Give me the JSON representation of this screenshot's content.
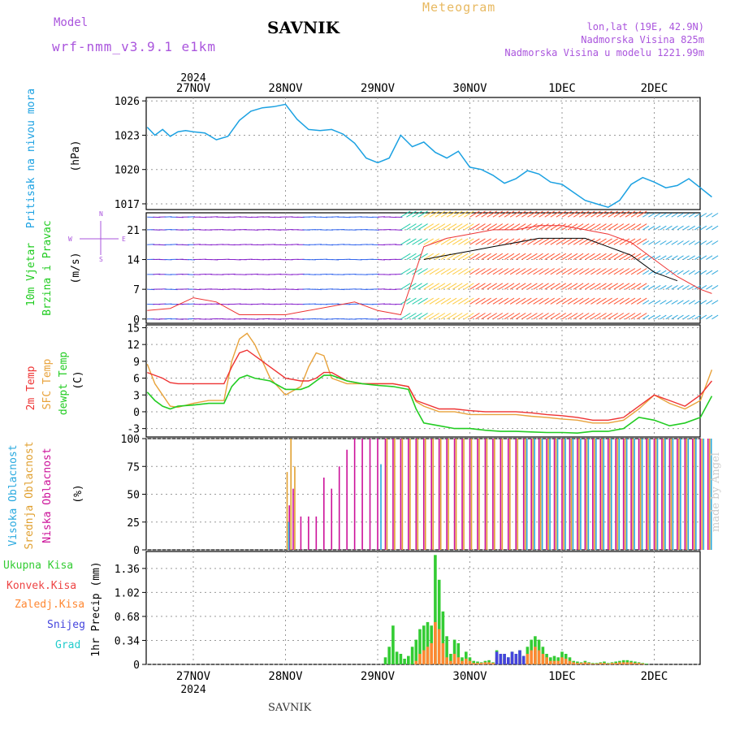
{
  "header": {
    "model_label": "Model",
    "model_name": "wrf-nmm_v3.9.1 e1km",
    "station": "SAVNIK",
    "meteogram": "Meteogram",
    "lonlat": "lon,lat (19E, 42.9N)",
    "elevation": "Nadmorska Visina 825m",
    "model_elevation": "Nadmorska Visina u modelu 1221.99m",
    "footer_station": "SAVNIK",
    "watermark": "made by Angel"
  },
  "colors": {
    "pressure": "#1ba1e2",
    "temp2m": "#ee3333",
    "sfc": "#e8a23a",
    "dewpt": "#22cc22",
    "high_cloud": "#29a9df",
    "mid_cloud": "#e0a030",
    "low_cloud": "#cc1199",
    "total_precip": "#33cc33",
    "conv_precip": "#ee4444",
    "frozen_precip": "#ff8833",
    "snow": "#4444dd",
    "hail": "#22cccc",
    "grid": "#999999",
    "label_purple": "#aa55dd"
  },
  "time_axis": {
    "year": "2024",
    "days": [
      "27NOV",
      "28NOV",
      "29NOV",
      "30NOV",
      "1DEC",
      "2DEC"
    ]
  },
  "panel_labels": {
    "pressure": [
      "Pritisak na nivou mora",
      "(hPa)"
    ],
    "wind": [
      "10m Vjetar",
      "Brzina i Pravac",
      "(m/s)"
    ],
    "temp": [
      "2m Temp",
      "SFC Temp",
      "dewpt Temp",
      "(C)"
    ],
    "cloud": [
      "Visoka Oblacnost",
      "Srednja Oblacnost",
      "Niska Oblacnost",
      "(%)"
    ],
    "precip": [
      "Ukupna Kisa",
      "Konvek.Kisa",
      "Zaledj.Kisa",
      "Snijeg",
      "Grad",
      "1hr Precip (mm)"
    ],
    "compass": [
      "N",
      "E",
      "S",
      "W"
    ]
  },
  "chart_data": [
    {
      "type": "line",
      "name": "pressure",
      "ylabel": "(hPa)",
      "ylim": [
        1016.5,
        1026.3
      ],
      "yticks": [
        "1026",
        "1023",
        "1020",
        "1017"
      ],
      "x": [
        0,
        2,
        4,
        6,
        8,
        10,
        12,
        15,
        18,
        21,
        24,
        27,
        30,
        33,
        36,
        39,
        42,
        45,
        48,
        51,
        54,
        57,
        60,
        63,
        66,
        69,
        72,
        75,
        78,
        81,
        84,
        87,
        90,
        93,
        96,
        99,
        102,
        105,
        108,
        111,
        114,
        117,
        120,
        123,
        126,
        129,
        132,
        135,
        138,
        141,
        144,
        147
      ],
      "series": [
        {
          "name": "pressure",
          "values": [
            1023.7,
            1023.0,
            1023.5,
            1022.9,
            1023.3,
            1023.4,
            1023.3,
            1023.2,
            1022.6,
            1022.9,
            1024.3,
            1025.1,
            1025.4,
            1025.5,
            1025.7,
            1024.4,
            1023.5,
            1023.4,
            1023.5,
            1023.1,
            1022.3,
            1021.0,
            1020.6,
            1021.0,
            1023.0,
            1022.0,
            1022.4,
            1021.5,
            1021.0,
            1021.6,
            1020.2,
            1020.0,
            1019.5,
            1018.8,
            1019.2,
            1019.9,
            1019.6,
            1018.9,
            1018.7,
            1018.0,
            1017.3,
            1017.0,
            1016.7,
            1017.3,
            1018.7,
            1019.3,
            1018.9,
            1018.4,
            1018.6,
            1019.2,
            1018.4,
            1017.6
          ]
        }
      ]
    },
    {
      "type": "line",
      "name": "wind",
      "ylabel": "(m/s)",
      "ylim": [
        -1,
        25
      ],
      "yticks": [
        "21",
        "14",
        "7",
        "0"
      ],
      "x": [
        0,
        6,
        12,
        18,
        24,
        30,
        36,
        42,
        48,
        54,
        60,
        66,
        72,
        78,
        84,
        90,
        96,
        102,
        108,
        114,
        120,
        126,
        132,
        138,
        144,
        147
      ],
      "series": [
        {
          "name": "speed_red",
          "values": [
            2,
            2.5,
            5,
            4,
            1,
            1,
            1,
            2,
            3,
            4,
            2,
            1,
            17,
            19,
            20,
            21,
            21,
            22,
            22,
            21,
            20,
            18,
            14,
            10,
            7,
            6
          ]
        },
        {
          "name": "speed_black",
          "values": [
            null,
            null,
            null,
            null,
            null,
            null,
            null,
            null,
            null,
            null,
            null,
            null,
            14,
            15,
            16,
            17,
            18,
            19,
            19,
            19,
            17,
            15,
            11,
            9,
            null,
            null
          ]
        }
      ]
    },
    {
      "type": "line",
      "name": "temperature",
      "ylabel": "(C)",
      "ylim": [
        -4.5,
        15.5
      ],
      "yticks": [
        "15",
        "12",
        "9",
        "6",
        "3",
        "0",
        "-3"
      ],
      "x": [
        0,
        2,
        4,
        6,
        8,
        12,
        16,
        20,
        22,
        24,
        26,
        28,
        32,
        36,
        40,
        42,
        44,
        46,
        48,
        52,
        56,
        60,
        64,
        68,
        70,
        72,
        76,
        80,
        84,
        88,
        92,
        96,
        100,
        104,
        108,
        112,
        116,
        120,
        124,
        128,
        132,
        136,
        140,
        144,
        147
      ],
      "series": [
        {
          "name": "2m Temp",
          "values": [
            7,
            6.5,
            6,
            5.2,
            5,
            5,
            5,
            5,
            8,
            10.5,
            11,
            10,
            8,
            6,
            5.5,
            5.5,
            6,
            7,
            7,
            5.5,
            5,
            5,
            5,
            4.5,
            2,
            1.5,
            0.5,
            0.5,
            0.2,
            0,
            0,
            0,
            -0.2,
            -0.5,
            -0.7,
            -1,
            -1.5,
            -1.5,
            -1,
            1,
            3,
            2,
            1,
            3,
            5.5
          ]
        },
        {
          "name": "SFC Temp",
          "values": [
            8.5,
            5,
            3,
            1,
            0.8,
            1.5,
            2,
            2,
            9,
            13,
            14,
            12,
            6,
            3,
            4.5,
            8,
            10.5,
            10,
            6,
            5,
            5,
            5,
            5,
            4.5,
            1.8,
            1,
            0,
            0,
            -0.5,
            -0.5,
            -0.5,
            -0.5,
            -0.8,
            -1,
            -1.3,
            -1.5,
            -2,
            -2,
            -1.5,
            0.5,
            3,
            1.5,
            0.5,
            2,
            7.5
          ]
        },
        {
          "name": "dewpt Temp",
          "values": [
            3.5,
            2,
            1,
            0.5,
            1,
            1.2,
            1.5,
            1.5,
            4.5,
            6,
            6.5,
            6,
            5.5,
            4,
            4,
            4.5,
            5.5,
            6.5,
            6.5,
            5.5,
            5,
            4.7,
            4.5,
            4,
            0.5,
            -2,
            -2.5,
            -3,
            -3,
            -3.3,
            -3.5,
            -3.5,
            -3.6,
            -3.7,
            -3.7,
            -3.8,
            -3.5,
            -3.5,
            -3,
            -1,
            -1.5,
            -2.5,
            -2,
            -1,
            2.8
          ]
        }
      ]
    },
    {
      "type": "bar",
      "name": "cloud_cover",
      "ylabel": "(%)",
      "ylim": [
        0,
        100
      ],
      "yticks": [
        "100",
        "75",
        "50",
        "25",
        "0"
      ],
      "x": [
        36,
        37,
        38,
        40,
        42,
        44,
        46,
        48,
        50,
        52,
        54,
        56,
        58,
        60,
        62,
        64,
        66,
        68,
        70,
        72,
        74,
        76,
        78,
        80,
        82,
        84,
        86,
        88,
        90,
        92,
        94,
        96,
        98,
        100,
        102,
        104,
        106,
        108,
        110,
        112,
        114,
        116,
        118,
        120,
        122,
        124,
        126,
        128,
        130,
        132,
        134,
        136,
        138,
        140,
        142,
        144,
        146
      ],
      "series": [
        {
          "name": "Niska Oblacnost",
          "values": [
            0,
            40,
            55,
            30,
            30,
            30,
            65,
            55,
            75,
            90,
            100,
            100,
            100,
            100,
            100,
            100,
            100,
            100,
            100,
            100,
            100,
            100,
            100,
            100,
            100,
            100,
            100,
            100,
            100,
            100,
            100,
            100,
            100,
            100,
            100,
            100,
            100,
            100,
            100,
            100,
            100,
            100,
            100,
            100,
            100,
            100,
            100,
            100,
            100,
            100,
            100,
            100,
            100,
            100,
            100,
            100,
            100
          ]
        },
        {
          "name": "Srednja Oblacnost",
          "values": [
            70,
            100,
            75,
            0,
            0,
            0,
            0,
            0,
            0,
            0,
            0,
            0,
            0,
            0,
            100,
            100,
            100,
            100,
            100,
            100,
            100,
            100,
            100,
            100,
            100,
            100,
            100,
            100,
            100,
            100,
            100,
            100,
            100,
            100,
            100,
            100,
            100,
            100,
            100,
            100,
            100,
            100,
            100,
            100,
            100,
            100,
            100,
            100,
            100,
            100,
            100,
            100,
            100,
            100,
            100,
            100,
            100
          ]
        },
        {
          "name": "Visoka Oblacnost",
          "values": [
            25,
            0,
            0,
            0,
            0,
            0,
            0,
            0,
            0,
            0,
            0,
            0,
            0,
            77,
            0,
            0,
            0,
            0,
            0,
            0,
            0,
            0,
            0,
            0,
            0,
            0,
            0,
            0,
            0,
            0,
            0,
            0,
            100,
            100,
            100,
            100,
            100,
            100,
            100,
            100,
            100,
            100,
            100,
            100,
            100,
            100,
            100,
            100,
            100,
            100,
            100,
            100,
            100,
            100,
            100,
            100,
            100
          ]
        }
      ]
    },
    {
      "type": "bar",
      "name": "precipitation",
      "ylabel": "1hr Precip (mm)",
      "ylim": [
        0,
        1.6
      ],
      "yticks": [
        "1.36",
        "1.02",
        "0.68",
        "0.34",
        "0"
      ],
      "x": [
        62,
        63,
        64,
        65,
        66,
        67,
        68,
        69,
        70,
        71,
        72,
        73,
        74,
        75,
        76,
        77,
        78,
        79,
        80,
        81,
        82,
        83,
        84,
        85,
        86,
        87,
        88,
        89,
        90,
        91,
        92,
        93,
        94,
        95,
        96,
        97,
        98,
        99,
        100,
        101,
        102,
        103,
        104,
        105,
        106,
        107,
        108,
        109,
        110,
        111,
        112,
        113,
        114,
        115,
        116,
        117,
        118,
        119,
        120,
        121,
        122,
        123,
        124,
        125,
        126,
        127,
        128,
        129,
        130
      ],
      "series": [
        {
          "name": "Ukupna Kisa",
          "values": [
            0.1,
            0.25,
            0.55,
            0.18,
            0.15,
            0.08,
            0.12,
            0.25,
            0.35,
            0.5,
            0.55,
            0.6,
            0.55,
            1.55,
            1.2,
            0.75,
            0.4,
            0.15,
            0.35,
            0.3,
            0.1,
            0.18,
            0.1,
            0.05,
            0.04,
            0.03,
            0.05,
            0.06,
            0.03,
            0.2,
            0.15,
            0.15,
            0.1,
            0.18,
            0.15,
            0.2,
            0.12,
            0.25,
            0.35,
            0.4,
            0.35,
            0.25,
            0.15,
            0.1,
            0.12,
            0.1,
            0.18,
            0.15,
            0.1,
            0.05,
            0.04,
            0.03,
            0.05,
            0.03,
            0.02,
            0.02,
            0.03,
            0.04,
            0.02,
            0.03,
            0.04,
            0.05,
            0.06,
            0.06,
            0.05,
            0.04,
            0.03,
            0.02,
            0.01
          ]
        },
        {
          "name": "Konvek.Kisa",
          "values": [
            0,
            0,
            0,
            0,
            0,
            0,
            0,
            0,
            0,
            0,
            0,
            0,
            0,
            0,
            0,
            0,
            0,
            0,
            0,
            0,
            0,
            0,
            0,
            0,
            0,
            0,
            0,
            0,
            0,
            0,
            0,
            0,
            0,
            0,
            0,
            0,
            0,
            0,
            0,
            0,
            0,
            0,
            0,
            0,
            0,
            0,
            0,
            0,
            0,
            0,
            0,
            0,
            0,
            0,
            0,
            0,
            0,
            0,
            0,
            0,
            0,
            0,
            0,
            0,
            0,
            0,
            0,
            0,
            0
          ]
        },
        {
          "name": "Zaledj.Kisa",
          "values": [
            0,
            0,
            0,
            0,
            0,
            0,
            0,
            0,
            0.05,
            0.15,
            0.2,
            0.25,
            0.3,
            0.6,
            0.5,
            0.3,
            0.1,
            0.05,
            0.15,
            0.1,
            0.05,
            0.08,
            0.05,
            0.02,
            0.02,
            0.02,
            0.03,
            0.03,
            0.02,
            0.1,
            0.08,
            0.08,
            0.05,
            0.1,
            0.08,
            0.1,
            0.08,
            0.15,
            0.2,
            0.25,
            0.2,
            0.15,
            0.1,
            0.05,
            0.05,
            0.05,
            0.1,
            0.08,
            0.05,
            0.03,
            0.02,
            0.02,
            0.03,
            0.02,
            0.01,
            0.01,
            0.02,
            0.02,
            0.01,
            0.02,
            0.02,
            0.03,
            0.03,
            0.03,
            0.03,
            0.02,
            0.02,
            0.01,
            0
          ]
        },
        {
          "name": "Snijeg",
          "values": [
            0,
            0,
            0,
            0,
            0,
            0,
            0,
            0,
            0,
            0,
            0,
            0,
            0,
            0,
            0,
            0,
            0,
            0,
            0,
            0,
            0,
            0,
            0,
            0,
            0,
            0,
            0,
            0,
            0,
            0.18,
            0.15,
            0.15,
            0.1,
            0.18,
            0.15,
            0.2,
            0.12,
            0,
            0,
            0,
            0,
            0,
            0,
            0,
            0,
            0,
            0,
            0,
            0,
            0,
            0,
            0,
            0,
            0,
            0,
            0,
            0,
            0,
            0,
            0,
            0,
            0,
            0,
            0,
            0,
            0,
            0,
            0,
            0
          ]
        },
        {
          "name": "Grad",
          "values": [
            0,
            0,
            0,
            0,
            0,
            0,
            0,
            0,
            0,
            0,
            0,
            0,
            0,
            0,
            0,
            0,
            0,
            0,
            0,
            0,
            0,
            0,
            0,
            0,
            0,
            0,
            0,
            0,
            0,
            0,
            0,
            0,
            0,
            0,
            0,
            0,
            0,
            0,
            0,
            0,
            0,
            0,
            0,
            0,
            0,
            0,
            0,
            0,
            0,
            0,
            0,
            0,
            0,
            0,
            0,
            0,
            0,
            0,
            0,
            0,
            0,
            0,
            0,
            0,
            0,
            0,
            0,
            0,
            0
          ]
        }
      ]
    }
  ]
}
